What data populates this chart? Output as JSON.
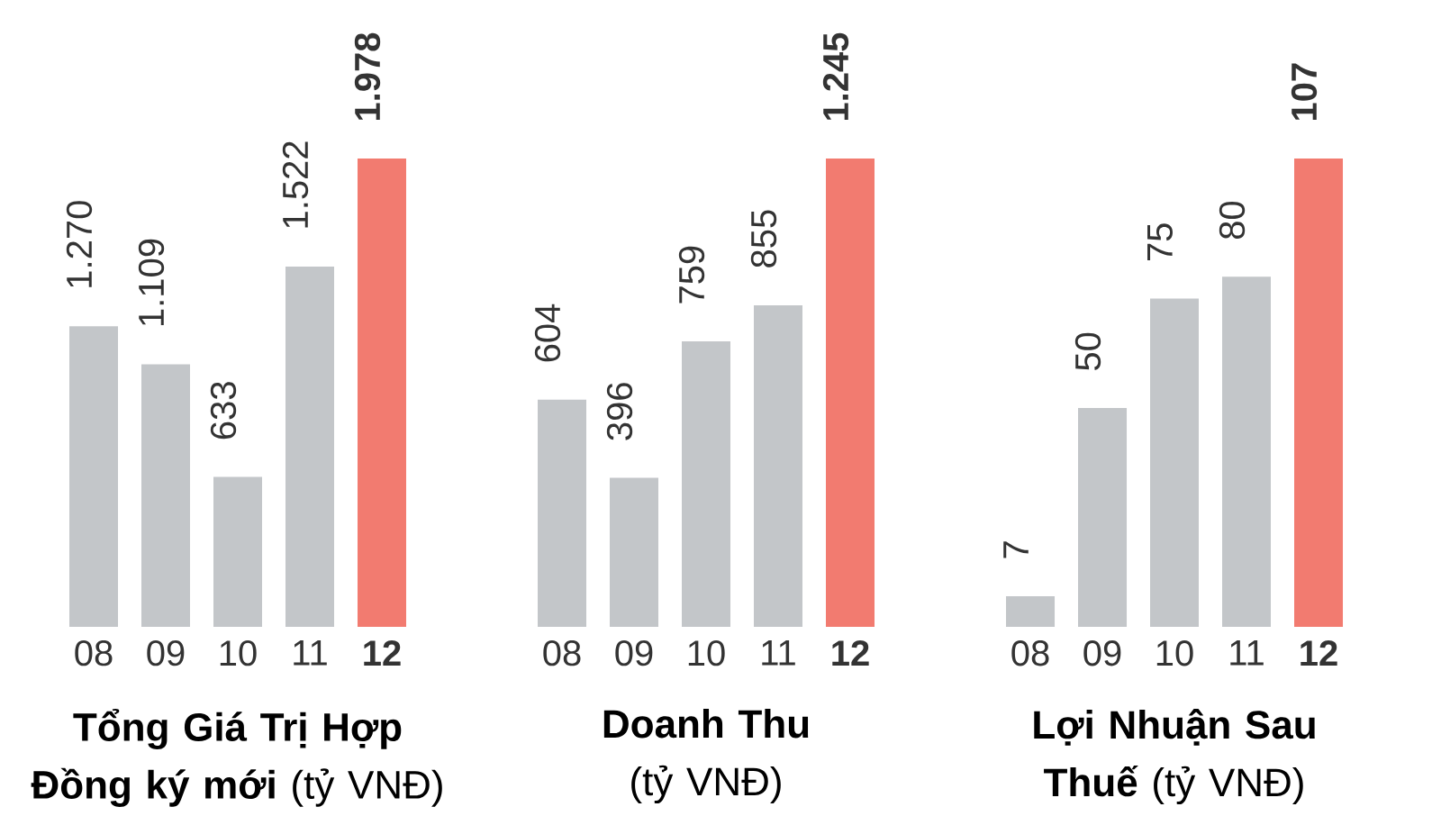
{
  "chart_data": [
    {
      "type": "bar",
      "title": "**Tổng Giá Trị Hợp Đồng ký mới** (tỷ VNĐ)",
      "categories": [
        "08",
        "09",
        "10",
        "11",
        "12"
      ],
      "values": [
        1270,
        1109,
        633,
        1522,
        1978
      ],
      "value_labels": [
        "1.270",
        "1.109",
        "633",
        "1.522",
        "1.978"
      ],
      "colors": [
        "#c3c6c9",
        "#c3c6c9",
        "#c3c6c9",
        "#c3c6c9",
        "#f27b70"
      ]
    },
    {
      "type": "bar",
      "title": "**Doanh Thu** (tỷ VNĐ)",
      "categories": [
        "08",
        "09",
        "10",
        "11",
        "12"
      ],
      "values": [
        604,
        396,
        759,
        855,
        1245
      ],
      "value_labels": [
        "604",
        "396",
        "759",
        "855",
        "1.245"
      ],
      "colors": [
        "#c3c6c9",
        "#c3c6c9",
        "#c3c6c9",
        "#c3c6c9",
        "#f27b70"
      ]
    },
    {
      "type": "bar",
      "title": "**Lợi Nhuận Sau Thuế** (tỷ VNĐ)",
      "categories": [
        "08",
        "09",
        "10",
        "11",
        "12"
      ],
      "values": [
        7,
        50,
        75,
        80,
        107
      ],
      "value_labels": [
        "7",
        "50",
        "75",
        "80",
        "107"
      ],
      "colors": [
        "#c3c6c9",
        "#c3c6c9",
        "#c3c6c9",
        "#c3c6c9",
        "#f27b70"
      ]
    }
  ]
}
